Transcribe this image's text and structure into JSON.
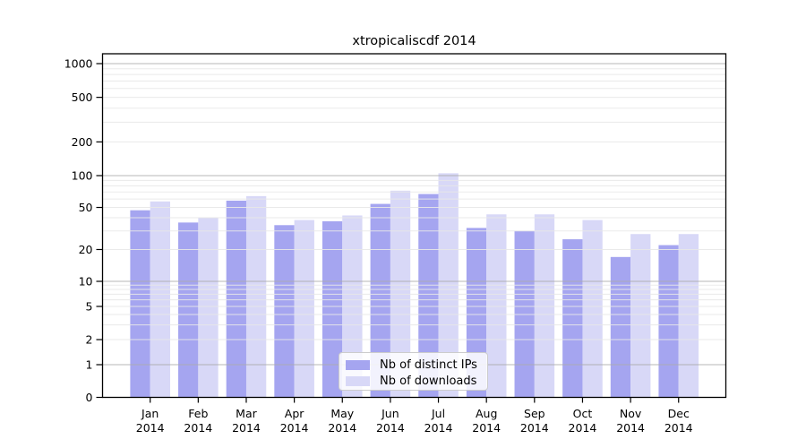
{
  "title": "xtropicaliscdf 2014",
  "chart_data": {
    "type": "bar",
    "title": "xtropicaliscdf 2014",
    "scale": "symlog",
    "categories": [
      "Jan",
      "Feb",
      "Mar",
      "Apr",
      "May",
      "Jun",
      "Jul",
      "Aug",
      "Sep",
      "Oct",
      "Nov",
      "Dec"
    ],
    "year": "2014",
    "series": [
      {
        "name": "Nb of distinct IPs",
        "color": "#a5a5f0",
        "values": [
          47,
          36,
          58,
          34,
          37,
          54,
          67,
          32,
          30,
          25,
          17,
          22
        ]
      },
      {
        "name": "Nb of downloads",
        "color": "#d8d8f7",
        "values": [
          57,
          40,
          64,
          38,
          42,
          72,
          105,
          43,
          43,
          38,
          28,
          28
        ]
      }
    ],
    "y_ticks": [
      1000,
      500,
      200,
      100,
      50,
      20,
      10,
      5,
      2,
      1,
      0
    ],
    "ylim": [
      0,
      1300
    ],
    "xlabel": "",
    "ylabel": "",
    "grid": "horizontal major (powers of 10) + minor log lines, drawn over bars",
    "legend_position": "inside bottom-center"
  },
  "colors": {
    "bar_distinct_ips": "#a5a5f0",
    "bar_downloads": "#d8d8f7",
    "grid_major": "#ababab",
    "grid_minor": "#e8e8e8",
    "axis": "#000000",
    "legend_border": "#cccccc"
  }
}
